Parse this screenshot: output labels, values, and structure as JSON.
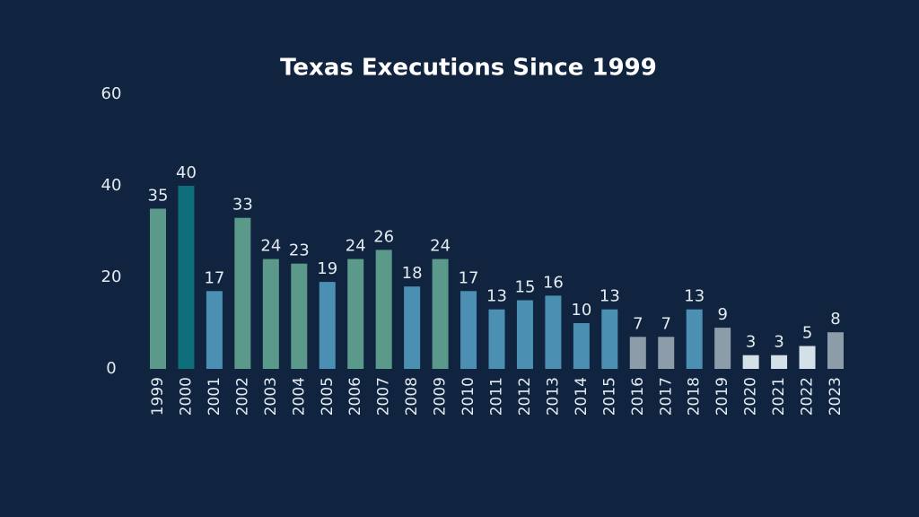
{
  "chart_data": {
    "type": "bar",
    "title": "Texas Executions Since 1999",
    "categories": [
      "1999",
      "2000",
      "2001",
      "2002",
      "2003",
      "2004",
      "2005",
      "2006",
      "2007",
      "2008",
      "2009",
      "2010",
      "2011",
      "2012",
      "2013",
      "2014",
      "2015",
      "2016",
      "2017",
      "2018",
      "2019",
      "2020",
      "2021",
      "2022",
      "2023"
    ],
    "values": [
      35,
      40,
      17,
      33,
      24,
      23,
      19,
      24,
      26,
      18,
      24,
      17,
      13,
      15,
      16,
      10,
      13,
      7,
      7,
      13,
      9,
      3,
      3,
      5,
      8
    ],
    "colors": [
      "#5b9a8b",
      "#0e6e7a",
      "#4b90b2",
      "#5b9a8b",
      "#5b9a8b",
      "#5b9a8b",
      "#4b90b2",
      "#5b9a8b",
      "#5b9a8b",
      "#4b90b2",
      "#5b9a8b",
      "#4b90b2",
      "#4b90b2",
      "#4b90b2",
      "#4b90b2",
      "#4b90b2",
      "#4b90b2",
      "#8c9ca8",
      "#8c9ca8",
      "#4b90b2",
      "#8c9ca8",
      "#d3e0e7",
      "#d3e0e7",
      "#d3e0e7",
      "#8c9ca8"
    ],
    "ylim": [
      0,
      60
    ],
    "yticks": [
      0,
      20,
      40,
      60
    ]
  }
}
